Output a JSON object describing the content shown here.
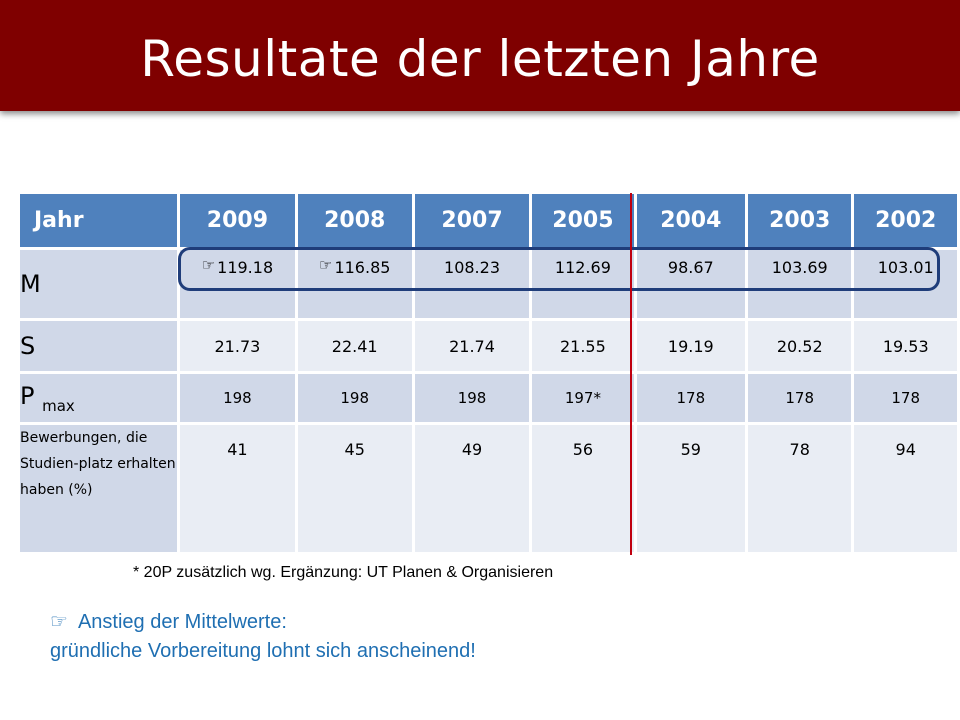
{
  "title": "Resultate der letzten Jahre",
  "table": {
    "header": [
      "Jahr",
      "2009",
      "2008",
      "2007",
      "2005",
      "2004",
      "2003",
      "2002"
    ],
    "rows": [
      {
        "label": "M",
        "values": [
          "119.18",
          "116.85",
          "108.23",
          "112.69",
          "98.67",
          "103.69",
          "103.01"
        ]
      },
      {
        "label": "S",
        "values": [
          "21.73",
          "22.41",
          "21.74",
          "21.55",
          "19.19",
          "20.52",
          "19.53"
        ]
      },
      {
        "label": "P",
        "label_sub": "max",
        "values": [
          "198",
          "198",
          "198",
          "197*",
          "178",
          "178",
          "178"
        ]
      },
      {
        "label": "Bewerbungen, die Studien-platz erhalten haben (%)",
        "values": [
          "41",
          "45",
          "49",
          "56",
          "59",
          "78",
          "94"
        ]
      }
    ]
  },
  "footnote": "* 20P  zusätzlich wg. Ergänzung: UT Planen & Organisieren",
  "note": {
    "icon": "pointing-hand-icon",
    "line1": "Anstieg der Mittelwerte:",
    "line2": "gründliche Vorbereitung lohnt sich anscheinend!"
  },
  "colors": {
    "banner": "#7f0000",
    "header_blue": "#4f81bd",
    "row_light": "#e9edf4",
    "row_dark": "#d0d8e8",
    "highlight_box": "#1f3d7a",
    "divider_line": "#c0000f",
    "note_text": "#1f6fb2"
  }
}
